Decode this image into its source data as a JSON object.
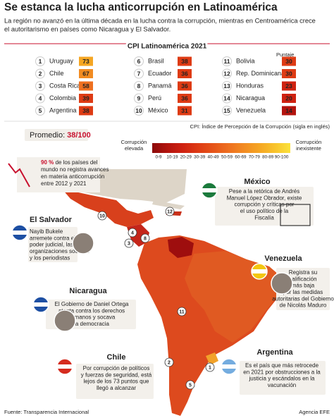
{
  "header": {
    "title": "Se estanca la lucha anticorrupción en Latinoamérica",
    "subtitle_lines": [
      "La región no avanzó en la última década en la lucha contra la corrupción, mientras en Centroamérica crece",
      "el autoritarismo en países como Nicaragua y El Salvador."
    ]
  },
  "table": {
    "title": "CPI Latinoamérica 2021",
    "score_label": "Puntaje",
    "rows": [
      [
        1,
        "Uruguay",
        73
      ],
      [
        2,
        "Chile",
        67
      ],
      [
        3,
        "Costa Rica",
        58
      ],
      [
        4,
        "Colombia",
        39
      ],
      [
        5,
        "Argentina",
        38
      ],
      [
        6,
        "Brasil",
        38
      ],
      [
        7,
        "Ecuador",
        36
      ],
      [
        8,
        "Panamá",
        36
      ],
      [
        9,
        "Perú",
        36
      ],
      [
        10,
        "México",
        31
      ],
      [
        11,
        "Bolivia",
        30
      ],
      [
        12,
        "Rep. Dominicana",
        30
      ],
      [
        13,
        "Honduras",
        23
      ],
      [
        14,
        "Nicaragua",
        20
      ],
      [
        15,
        "Venezuela",
        14
      ]
    ],
    "note": "CPI: Índice de Percepción de la Corrupción (sigla en inglés)"
  },
  "average": {
    "label": "Promedio:",
    "value": "38/100"
  },
  "legend": {
    "low_label_lines": [
      "Corrupción",
      "elevada"
    ],
    "high_label_lines": [
      "Corrupción",
      "inexistente"
    ],
    "bins": [
      "0-9",
      "10-19",
      "20-29",
      "30-39",
      "40-49",
      "50-59",
      "60-69",
      "70-79",
      "80-89",
      "90-100"
    ],
    "colors": [
      "#8b0a0a",
      "#b3140e",
      "#cf2211",
      "#de3b14",
      "#e65519",
      "#ee7020",
      "#f28c22",
      "#f5a623",
      "#f8c32c",
      "#fbe23c"
    ]
  },
  "map_markers": [
    10,
    12,
    4,
    3,
    8,
    2,
    11,
    1,
    5
  ],
  "boxes": {
    "stat": {
      "highlight": "90 %",
      "lines": [
        " de los países del",
        "mundo no registra avances",
        "en materia anticorrupción",
        "entre 2012 y 2021"
      ]
    },
    "mexico": {
      "title": "México",
      "lines": [
        "Pese a la retórica de Andrés",
        "Manuel López Obrador, existe",
        "corrupción y críticas por",
        "el uso político de la",
        "Fiscalía"
      ]
    },
    "el_salvador": {
      "title": "El Salvador",
      "lines": [
        "Nayib Bukele",
        "arremete contra el",
        "poder judicial, las",
        "organizaciones sociales",
        "y los periodistas"
      ]
    },
    "venezuela": {
      "title": "Venezuela",
      "lines": [
        "Registra su",
        "calificación",
        "más baja",
        "por las medidas",
        "autoritarias del Gobierno",
        "de Nicolás Maduro"
      ]
    },
    "nicaragua": {
      "title": "Nicaragua",
      "lines": [
        "El Gobierno de Daniel Ortega",
        "atenta contra los derechos",
        "humanos y socava",
        "la democracia"
      ]
    },
    "chile": {
      "title": "Chile",
      "lines": [
        "Por corrupción de políticos",
        "y fuerzas de seguridad, está",
        "lejos de los 73 puntos que",
        "llegó a alcanzar"
      ]
    },
    "argentina": {
      "title": "Argentina",
      "lines": [
        "Es el país que más retrocede",
        "en 2021 por obstrucciones a la",
        "justicia y escándalos en la",
        "vacunación"
      ]
    }
  },
  "footer": {
    "source": "Fuente: Transparencia Internacional",
    "credit": "Agencia EFE"
  }
}
